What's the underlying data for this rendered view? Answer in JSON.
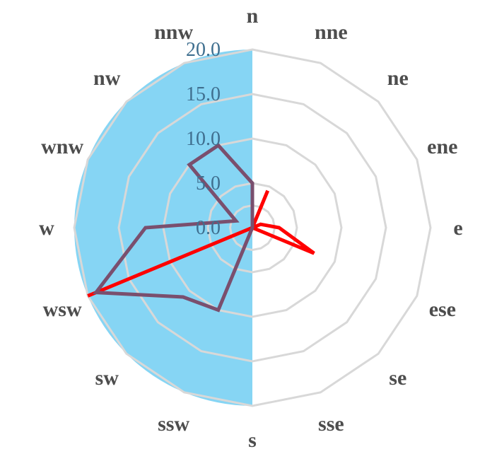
{
  "chart_data": {
    "type": "radar",
    "title": "",
    "directions": [
      "n",
      "nne",
      "ne",
      "ene",
      "e",
      "ese",
      "se",
      "sse",
      "s",
      "ssw",
      "sw",
      "wsw",
      "w",
      "wnw",
      "nw",
      "nnw"
    ],
    "rlim": [
      0,
      20
    ],
    "r_ticks": [
      "0.0",
      "5.0",
      "10.0",
      "15.0",
      "20.0"
    ],
    "grid": true,
    "series": [
      {
        "color": "#ff0000",
        "values": [
          0.0,
          4.5,
          0.0,
          1.0,
          3.0,
          7.5,
          0.0,
          0.0,
          0.0,
          0.0,
          0.0,
          20.0,
          0.0,
          0.0,
          0.0,
          0.0
        ]
      },
      {
        "color": "#7a4f6e",
        "values": [
          5.0,
          0.0,
          0.0,
          0.0,
          0.0,
          0.0,
          0.0,
          0.0,
          0.0,
          10.0,
          11.0,
          19.0,
          12.0,
          2.0,
          10.0,
          10.0
        ]
      }
    ],
    "highlight_sector": {
      "color": "#7fd3f3",
      "from_direction": "s",
      "to_direction": "n",
      "radius": 20
    }
  }
}
